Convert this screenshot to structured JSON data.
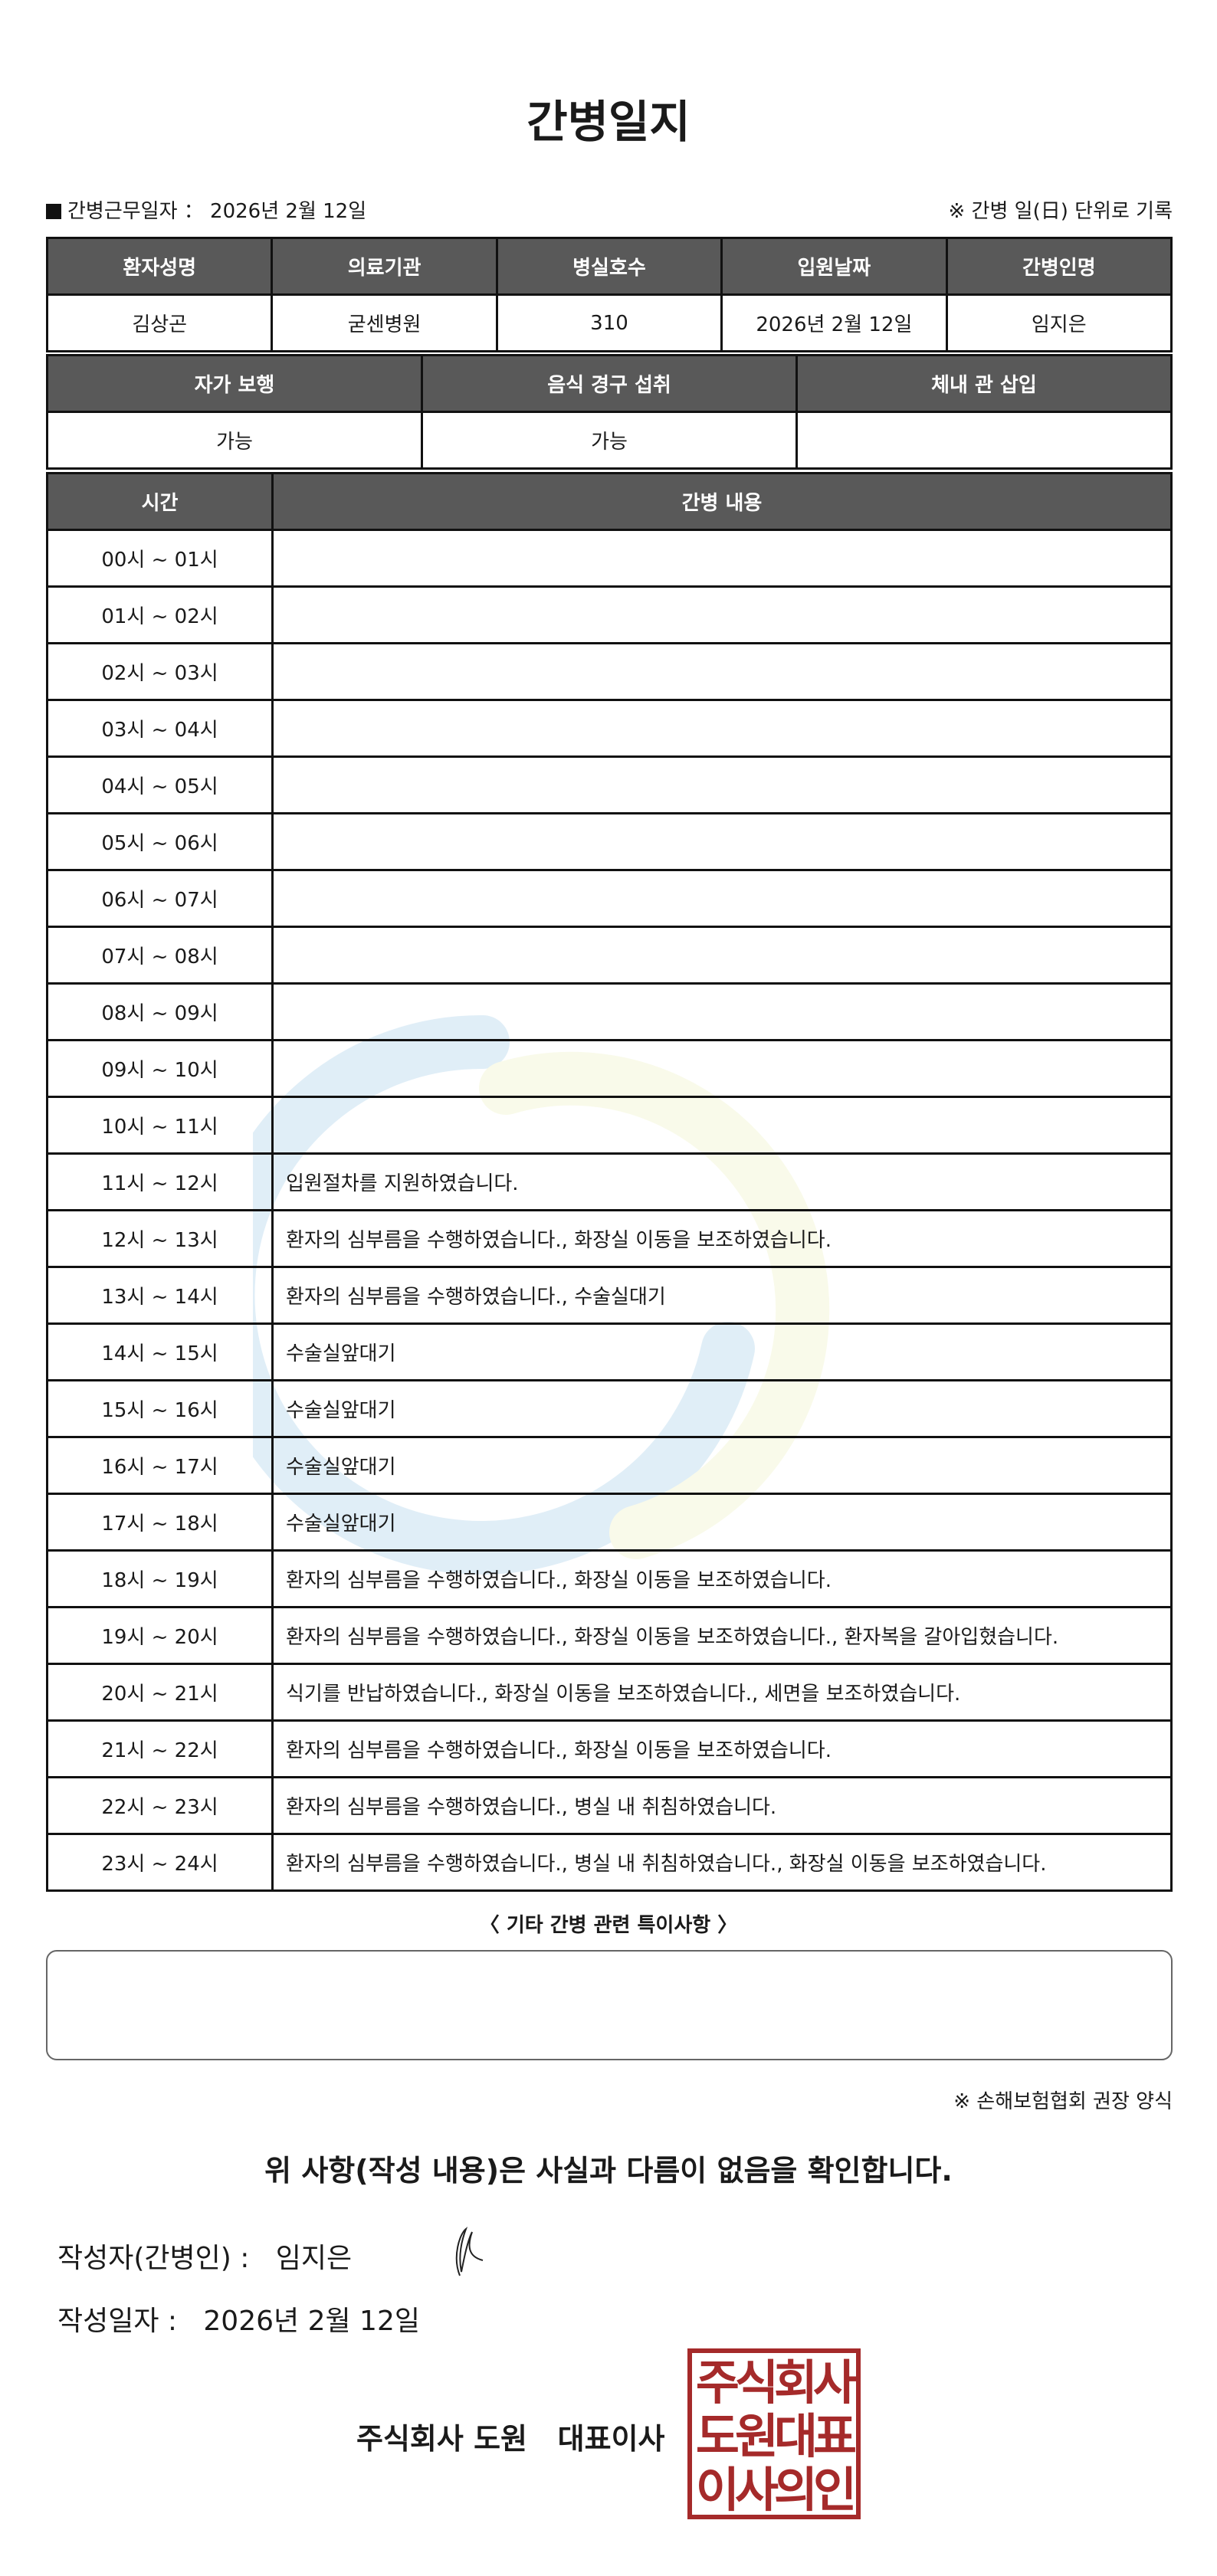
{
  "title": "간병일지",
  "info": {
    "label": "간병근무일자 ： 2026년 2월 12일",
    "rule_note": "※ 간병 일(日) 단위로 기록"
  },
  "patient_table": {
    "headers": [
      "환자성명",
      "의료기관",
      "병실호수",
      "입원날짜",
      "간병인명"
    ],
    "values": [
      "김상곤",
      "굳센병원",
      "310",
      "2026년 2월 12일",
      "임지은"
    ]
  },
  "status_table": {
    "headers": [
      "자가 보행",
      "음식 경구 섭취",
      "체내 관 삽입"
    ],
    "values": [
      "가능",
      "가능",
      ""
    ]
  },
  "log_table": {
    "headers": [
      "시간",
      "간병 내용"
    ],
    "rows": [
      {
        "time": "00시 ~ 01시",
        "content": ""
      },
      {
        "time": "01시 ~ 02시",
        "content": ""
      },
      {
        "time": "02시 ~ 03시",
        "content": ""
      },
      {
        "time": "03시 ~ 04시",
        "content": ""
      },
      {
        "time": "04시 ~ 05시",
        "content": ""
      },
      {
        "time": "05시 ~ 06시",
        "content": ""
      },
      {
        "time": "06시 ~ 07시",
        "content": ""
      },
      {
        "time": "07시 ~ 08시",
        "content": ""
      },
      {
        "time": "08시 ~ 09시",
        "content": ""
      },
      {
        "time": "09시 ~ 10시",
        "content": ""
      },
      {
        "time": "10시 ~ 11시",
        "content": ""
      },
      {
        "time": "11시 ~ 12시",
        "content": "입원절차를 지원하였습니다."
      },
      {
        "time": "12시 ~ 13시",
        "content": "환자의 심부름을 수행하였습니다., 화장실 이동을 보조하였습니다."
      },
      {
        "time": "13시 ~ 14시",
        "content": "환자의 심부름을 수행하였습니다., 수술실대기"
      },
      {
        "time": "14시 ~ 15시",
        "content": "수술실앞대기"
      },
      {
        "time": "15시 ~ 16시",
        "content": "수술실앞대기"
      },
      {
        "time": "16시 ~ 17시",
        "content": "수술실앞대기"
      },
      {
        "time": "17시 ~ 18시",
        "content": "수술실앞대기"
      },
      {
        "time": "18시 ~ 19시",
        "content": "환자의 심부름을 수행하였습니다., 화장실 이동을 보조하였습니다."
      },
      {
        "time": "19시 ~ 20시",
        "content": "환자의 심부름을 수행하였습니다., 화장실 이동을 보조하였습니다., 환자복을 갈아입혔습니다."
      },
      {
        "time": "20시 ~ 21시",
        "content": "식기를 반납하였습니다., 화장실 이동을 보조하였습니다., 세면을 보조하였습니다."
      },
      {
        "time": "21시 ~ 22시",
        "content": "환자의 심부름을 수행하였습니다., 화장실 이동을 보조하였습니다."
      },
      {
        "time": "22시 ~ 23시",
        "content": "환자의 심부름을 수행하였습니다., 병실 내 취침하였습니다."
      },
      {
        "time": "23시 ~ 24시",
        "content": "환자의 심부름을 수행하였습니다., 병실 내 취침하였습니다., 화장실 이동을 보조하였습니다."
      }
    ]
  },
  "special": {
    "title": "〈 기타 간병 관련 특이사항 〉",
    "value": ""
  },
  "form_note": "※ 손해보험협회 권장 양식",
  "confirm": "위 사항(작성 내용)은 사실과 다름이 없음을 확인합니다.",
  "writer": {
    "label": "작성자(간병인) :",
    "name": "임지은"
  },
  "written_date": {
    "label": "작성일자 :",
    "value": "2026년 2월 12일"
  },
  "company": "주식회사 도원   대표이사",
  "seal_text": "주식회사도원대표이사의인",
  "colors": {
    "header_bg": "#595959",
    "seal": "#a52a2a"
  }
}
